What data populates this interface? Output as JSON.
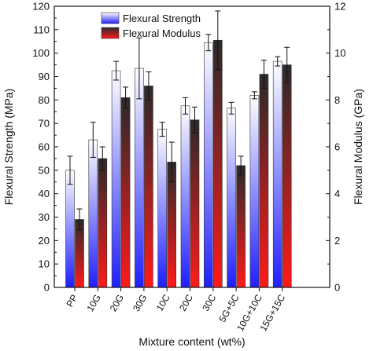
{
  "chart_data": {
    "type": "bar",
    "xlabel": "Mixture content (wt%)",
    "ylabel": "Flexural Strength (MPa)",
    "y2label": "Flexural Modulus (GPa)",
    "ylim": [
      0,
      120
    ],
    "y2lim": [
      0,
      12
    ],
    "yticks": [
      0,
      10,
      20,
      30,
      40,
      50,
      60,
      70,
      80,
      90,
      100,
      110,
      120
    ],
    "y2ticks": [
      0,
      2,
      4,
      6,
      8,
      10,
      12
    ],
    "legend_position": "top-center",
    "grid": false,
    "categories": [
      "PP",
      "10G",
      "20G",
      "30G",
      "10C",
      "20C",
      "30C",
      "5G+5C",
      "10G+10C",
      "15G+15C"
    ],
    "series": [
      {
        "name": "Flexural Strength",
        "axis": "left",
        "color_top": "#ffffff",
        "color_bottom": "#1f1fff",
        "values": [
          50,
          63,
          92.5,
          93.5,
          67.5,
          77.5,
          104.5,
          76.5,
          82,
          96.5
        ],
        "errors": [
          6,
          7.5,
          4,
          13,
          3,
          3.5,
          3.5,
          2.5,
          1.5,
          2
        ]
      },
      {
        "name": "Flexural Modulus",
        "axis": "right",
        "color_top": "#2a2a2a",
        "color_bottom": "#ff1a1a",
        "values": [
          2.9,
          5.5,
          8.1,
          8.6,
          5.35,
          7.15,
          10.55,
          5.2,
          9.1,
          9.5
        ],
        "errors": [
          0.45,
          0.5,
          0.45,
          0.6,
          0.85,
          0.55,
          1.25,
          0.4,
          0.6,
          0.75
        ]
      }
    ]
  }
}
